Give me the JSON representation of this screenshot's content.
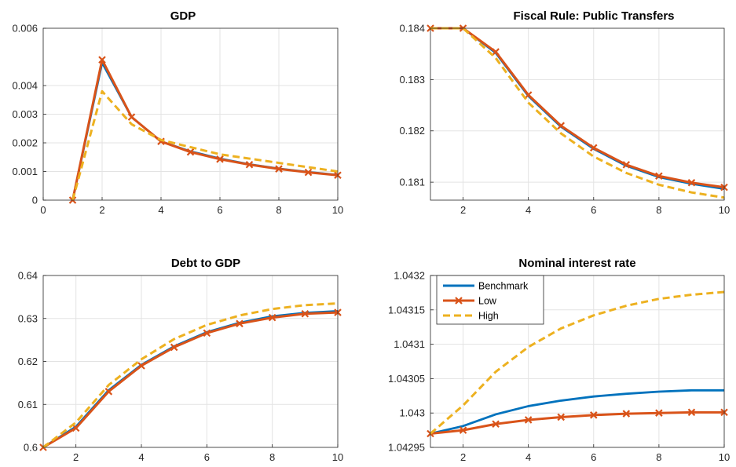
{
  "chart_data": [
    {
      "type": "line",
      "title": "GDP",
      "xlim": [
        0,
        10
      ],
      "ylim": [
        0,
        0.006
      ],
      "xticks": [
        0,
        2,
        4,
        6,
        8,
        10
      ],
      "yticks": [
        0,
        0.001,
        0.002,
        0.003,
        0.004,
        0.006
      ],
      "ytick_labels": [
        "0",
        "0.001",
        "0.002",
        "0.003",
        "0.004",
        "0.006"
      ],
      "grid": true,
      "x": [
        1,
        2,
        3,
        4,
        5,
        6,
        7,
        8,
        9,
        10
      ],
      "series": [
        {
          "key": "benchmark",
          "values": [
            0,
            0.0048,
            0.0029,
            0.00205,
            0.0017,
            0.00145,
            0.00125,
            0.0011,
            0.00098,
            0.00088
          ]
        },
        {
          "key": "low",
          "values": [
            0,
            0.0049,
            0.0029,
            0.00205,
            0.00168,
            0.00143,
            0.00124,
            0.00109,
            0.00097,
            0.00087
          ]
        },
        {
          "key": "high",
          "values": [
            0,
            0.0038,
            0.00265,
            0.0021,
            0.00185,
            0.0016,
            0.00145,
            0.0013,
            0.00115,
            0.001
          ]
        }
      ]
    },
    {
      "type": "line",
      "title": "Fiscal Rule: Public Transfers",
      "xlim": [
        1,
        10
      ],
      "ylim": [
        0.18065,
        0.184
      ],
      "xticks": [
        2,
        4,
        6,
        8,
        10
      ],
      "yticks": [
        0.181,
        0.182,
        0.183,
        0.184
      ],
      "ytick_labels": [
        "0.181",
        "0.182",
        "0.183",
        "0.184"
      ],
      "grid": true,
      "x": [
        1,
        2,
        3,
        4,
        5,
        6,
        7,
        8,
        9,
        10
      ],
      "series": [
        {
          "key": "benchmark",
          "values": [
            0.184,
            0.184,
            0.18352,
            0.18268,
            0.18208,
            0.18165,
            0.18132,
            0.1811,
            0.18097,
            0.18087
          ]
        },
        {
          "key": "low",
          "values": [
            0.184,
            0.184,
            0.18354,
            0.1827,
            0.1821,
            0.18167,
            0.18134,
            0.18112,
            0.18099,
            0.1809
          ]
        },
        {
          "key": "high",
          "values": [
            0.184,
            0.184,
            0.18342,
            0.18255,
            0.18195,
            0.1815,
            0.18118,
            0.18095,
            0.1808,
            0.1807
          ]
        }
      ]
    },
    {
      "type": "line",
      "title": "Debt to GDP",
      "xlim": [
        1,
        10
      ],
      "ylim": [
        0.6,
        0.64
      ],
      "xticks": [
        2,
        4,
        6,
        8,
        10
      ],
      "yticks": [
        0.6,
        0.61,
        0.62,
        0.63,
        0.64
      ],
      "ytick_labels": [
        "0.6",
        "0.61",
        "0.62",
        "0.63",
        "0.64"
      ],
      "grid": true,
      "x": [
        1,
        2,
        3,
        4,
        5,
        6,
        7,
        8,
        9,
        10
      ],
      "series": [
        {
          "key": "benchmark",
          "values": [
            0.6,
            0.6048,
            0.6133,
            0.6192,
            0.6235,
            0.6268,
            0.629,
            0.6305,
            0.6313,
            0.6317
          ]
        },
        {
          "key": "low",
          "values": [
            0.6,
            0.6045,
            0.613,
            0.619,
            0.6233,
            0.6266,
            0.6288,
            0.6302,
            0.6311,
            0.6314
          ]
        },
        {
          "key": "high",
          "values": [
            0.6,
            0.6058,
            0.6145,
            0.6205,
            0.6252,
            0.6285,
            0.6307,
            0.6322,
            0.6331,
            0.6335
          ]
        }
      ]
    },
    {
      "type": "line",
      "title": "Nominal interest rate",
      "xlim": [
        1,
        10
      ],
      "ylim": [
        1.04295,
        1.0432
      ],
      "xticks": [
        2,
        4,
        6,
        8,
        10
      ],
      "yticks": [
        1.04295,
        1.043,
        1.04305,
        1.0431,
        1.04315,
        1.0432
      ],
      "ytick_labels": [
        "1.04295",
        "1.043",
        "1.04305",
        "1.0431",
        "1.04315",
        "1.0432"
      ],
      "grid": true,
      "legend": "top-left",
      "x": [
        1,
        2,
        3,
        4,
        5,
        6,
        7,
        8,
        9,
        10
      ],
      "series": [
        {
          "key": "benchmark",
          "values": [
            1.04297,
            1.042981,
            1.042998,
            1.04301,
            1.043018,
            1.043024,
            1.043028,
            1.043031,
            1.043033,
            1.043033
          ]
        },
        {
          "key": "low",
          "values": [
            1.04297,
            1.042975,
            1.042984,
            1.04299,
            1.042994,
            1.042997,
            1.042999,
            1.043,
            1.043001,
            1.043001
          ]
        },
        {
          "key": "high",
          "values": [
            1.04297,
            1.043011,
            1.04306,
            1.043096,
            1.043123,
            1.043142,
            1.043156,
            1.043166,
            1.043172,
            1.043176
          ]
        }
      ]
    }
  ],
  "legend": {
    "entries": [
      {
        "key": "benchmark",
        "label": "Benchmark"
      },
      {
        "key": "low",
        "label": "Low"
      },
      {
        "key": "high",
        "label": "High"
      }
    ]
  },
  "colors": {
    "benchmark": "#0072BD",
    "low": "#D95319",
    "high": "#EDB120",
    "grid": "#e3e3e3",
    "axes": "#262626"
  }
}
